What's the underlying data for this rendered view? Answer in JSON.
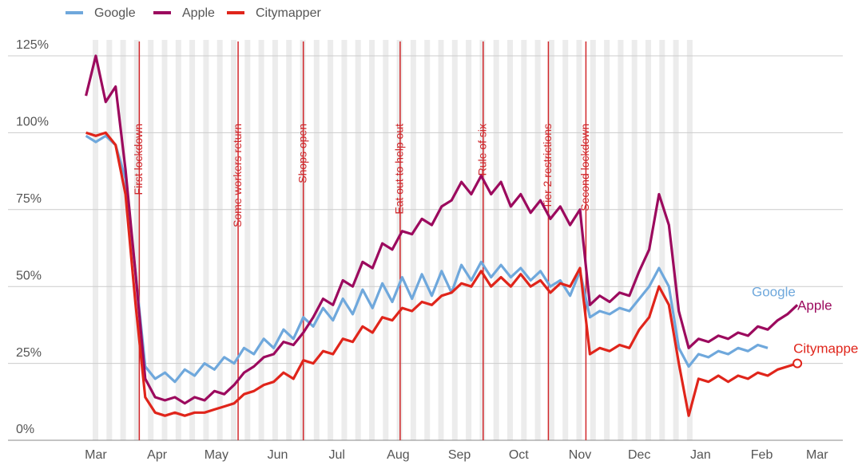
{
  "chart_data": {
    "type": "line",
    "x": [
      -5,
      0,
      5,
      10,
      15,
      20,
      25,
      30,
      35,
      40,
      45,
      50,
      55,
      60,
      65,
      70,
      75,
      80,
      85,
      90,
      95,
      100,
      105,
      110,
      115,
      120,
      125,
      130,
      135,
      140,
      145,
      150,
      155,
      160,
      165,
      170,
      175,
      180,
      185,
      190,
      195,
      200,
      205,
      210,
      215,
      220,
      225,
      230,
      235,
      240,
      245,
      250,
      255,
      260,
      265,
      270,
      275,
      280,
      285,
      290,
      295,
      300,
      305,
      310,
      315,
      320,
      325,
      330,
      335,
      340,
      345,
      350,
      355
    ],
    "series": [
      {
        "name": "Google",
        "color": "#6fa8dc",
        "values": [
          99,
          97,
          99,
          96,
          85,
          55,
          24,
          20,
          22,
          19,
          23,
          21,
          25,
          23,
          27,
          25,
          30,
          28,
          33,
          30,
          36,
          33,
          40,
          37,
          43,
          39,
          46,
          41,
          49,
          43,
          51,
          45,
          53,
          46,
          54,
          47,
          55,
          48,
          57,
          52,
          58,
          53,
          57,
          53,
          56,
          52,
          55,
          50,
          52,
          47,
          55,
          40,
          42,
          41,
          43,
          42,
          46,
          50,
          56,
          50,
          30,
          24,
          28,
          27,
          29,
          28,
          30,
          29,
          31,
          30,
          null,
          null,
          null
        ]
      },
      {
        "name": "Apple",
        "color": "#9c0a5e",
        "values": [
          112,
          125,
          110,
          115,
          88,
          55,
          20,
          14,
          13,
          14,
          12,
          14,
          13,
          16,
          15,
          18,
          22,
          24,
          27,
          28,
          32,
          31,
          35,
          40,
          46,
          44,
          52,
          50,
          58,
          56,
          64,
          62,
          68,
          67,
          72,
          70,
          76,
          78,
          84,
          80,
          86,
          80,
          84,
          76,
          80,
          74,
          78,
          72,
          76,
          70,
          75,
          44,
          47,
          45,
          48,
          47,
          55,
          62,
          80,
          70,
          42,
          30,
          33,
          32,
          34,
          33,
          35,
          34,
          37,
          36,
          39,
          41,
          44
        ]
      },
      {
        "name": "Citymapper",
        "color": "#e0251b",
        "values": [
          100,
          99,
          100,
          96,
          80,
          45,
          14,
          9,
          8,
          9,
          8,
          9,
          9,
          10,
          11,
          12,
          15,
          16,
          18,
          19,
          22,
          20,
          26,
          25,
          29,
          28,
          33,
          32,
          37,
          35,
          40,
          39,
          43,
          42,
          45,
          44,
          47,
          48,
          51,
          50,
          55,
          50,
          53,
          50,
          54,
          50,
          52,
          48,
          51,
          50,
          56,
          28,
          30,
          29,
          31,
          30,
          36,
          40,
          50,
          44,
          25,
          8,
          20,
          19,
          21,
          19,
          21,
          20,
          22,
          21,
          23,
          24,
          25
        ]
      }
    ],
    "xlim": [
      -21,
      378
    ],
    "xticks": [
      {
        "value": 0,
        "label": "Mar"
      },
      {
        "value": 31,
        "label": "Apr"
      },
      {
        "value": 61,
        "label": "May"
      },
      {
        "value": 92,
        "label": "Jun"
      },
      {
        "value": 122,
        "label": "Jul"
      },
      {
        "value": 153,
        "label": "Aug"
      },
      {
        "value": 184,
        "label": "Sep"
      },
      {
        "value": 214,
        "label": "Oct"
      },
      {
        "value": 245,
        "label": "Nov"
      },
      {
        "value": 275,
        "label": "Dec"
      },
      {
        "value": 306,
        "label": "Jan"
      },
      {
        "value": 337,
        "label": "Feb"
      },
      {
        "value": 365,
        "label": "Mar"
      }
    ],
    "ylim": [
      0,
      125
    ],
    "yticks": [
      {
        "value": 0,
        "label": "0%"
      },
      {
        "value": 25,
        "label": "25%"
      },
      {
        "value": 50,
        "label": "50%"
      },
      {
        "value": 75,
        "label": "75%"
      },
      {
        "value": 100,
        "label": "100%"
      },
      {
        "value": 125,
        "label": "125%"
      }
    ],
    "grid": true,
    "annotations": [
      {
        "x": 22,
        "text": "First lockdown"
      },
      {
        "x": 72,
        "text": "Some workers return"
      },
      {
        "x": 105,
        "text": "Shops open"
      },
      {
        "x": 154,
        "text": "Eat out to help out"
      },
      {
        "x": 196,
        "text": "Rule of six"
      },
      {
        "x": 229,
        "text": "Tier 2 restrictions"
      },
      {
        "x": 248,
        "text": "Second lockdown"
      }
    ],
    "annotation_color": "#d0262a"
  }
}
